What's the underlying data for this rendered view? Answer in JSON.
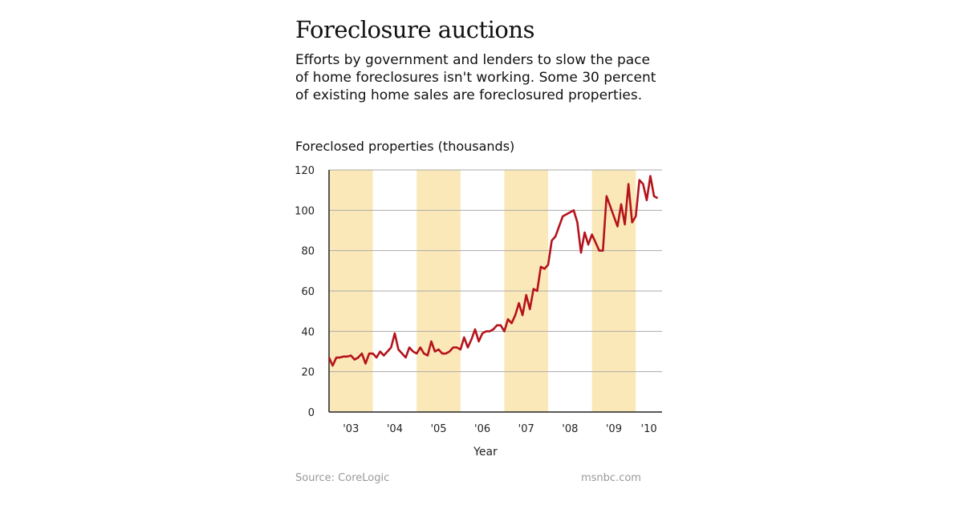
{
  "header": {
    "title": "Foreclosure auctions",
    "subtitle": "Efforts by government and lenders to slow the pace of home foreclosures isn't working. Some 30 percent of existing home sales are foreclosured properties."
  },
  "footer": {
    "source": "Source: CoreLogic",
    "credit": "msnbc.com"
  },
  "chart_data": {
    "type": "line",
    "title": "",
    "ylabel": "Foreclosed properties (thousands)",
    "xlabel": "Year",
    "ylim": [
      0,
      120
    ],
    "yticks": [
      0,
      20,
      40,
      60,
      80,
      100,
      120
    ],
    "xlim": [
      2003,
      2010.6
    ],
    "xtick_labels": [
      "'03",
      "'04",
      "'05",
      "'06",
      "'07",
      "'08",
      "'09",
      "'10"
    ],
    "grid": true,
    "band_color": "#fbe8b8",
    "line_color": "#b5121b",
    "frequency": "monthly",
    "start": "2003-01",
    "values": [
      27,
      23,
      27,
      27,
      27.5,
      27.5,
      28,
      26,
      27,
      29,
      24,
      29,
      29,
      27,
      30,
      28,
      30,
      32,
      39,
      31,
      29,
      27,
      32,
      30,
      29,
      32,
      29,
      28,
      35,
      30,
      31,
      29,
      29,
      30,
      32,
      32,
      31,
      37,
      32,
      36,
      41,
      35,
      39,
      40,
      40,
      41,
      43,
      43,
      40,
      46,
      44,
      48,
      54,
      48,
      58,
      51,
      61,
      60,
      72,
      71,
      73,
      85,
      87,
      92,
      97,
      98,
      99,
      100,
      94,
      79,
      89,
      83,
      88,
      84,
      80,
      80,
      107,
      102,
      97,
      92,
      103,
      93,
      113,
      94,
      97,
      115,
      113,
      105,
      117,
      107,
      106
    ]
  }
}
